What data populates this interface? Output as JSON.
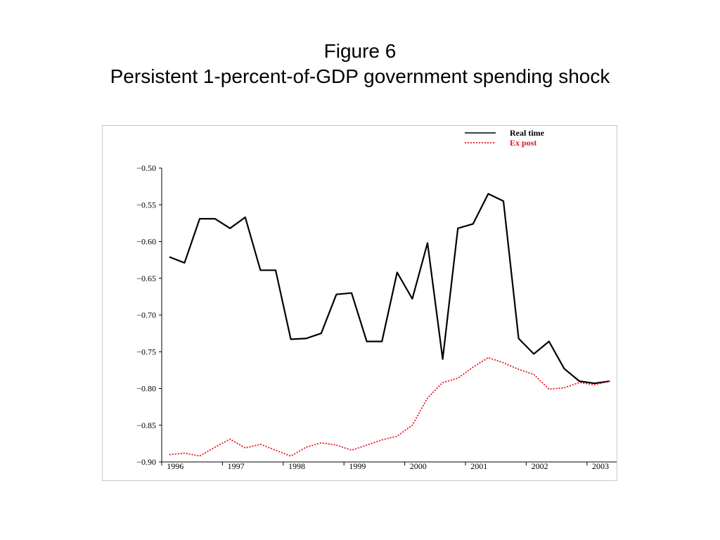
{
  "slide": {
    "title_line1": "Figure 6",
    "title_line2": "Persistent 1-percent-of-GDP government spending shock"
  },
  "chart_data": {
    "type": "line",
    "title": "",
    "xlabel": "",
    "ylabel": "",
    "x_tick_labels": [
      "1996",
      "1997",
      "1998",
      "1999",
      "2000",
      "2001",
      "2002",
      "2003"
    ],
    "y_tick_labels": [
      "−0.50",
      "−0.55",
      "−0.60",
      "−0.65",
      "−0.70",
      "−0.75",
      "−0.80",
      "−0.85",
      "−0.90"
    ],
    "y_tick_values": [
      -0.5,
      -0.55,
      -0.6,
      -0.65,
      -0.7,
      -0.75,
      -0.8,
      -0.85,
      -0.9
    ],
    "ylim": [
      -0.9,
      -0.5
    ],
    "xlim": [
      1996.0,
      2003.5
    ],
    "grid": false,
    "legend_position": "top-right",
    "x": [
      1996.125,
      1996.375,
      1996.625,
      1996.875,
      1997.125,
      1997.375,
      1997.625,
      1997.875,
      1998.125,
      1998.375,
      1998.625,
      1998.875,
      1999.125,
      1999.375,
      1999.625,
      1999.875,
      2000.125,
      2000.375,
      2000.625,
      2000.875,
      2001.125,
      2001.375,
      2001.625,
      2001.875,
      2002.125,
      2002.375,
      2002.625,
      2002.875,
      2003.125,
      2003.375
    ],
    "series": [
      {
        "name": "Real time",
        "color": "#000000",
        "style": "solid",
        "values": [
          -0.621,
          -0.629,
          -0.569,
          -0.569,
          -0.582,
          -0.567,
          -0.639,
          -0.639,
          -0.733,
          -0.732,
          -0.725,
          -0.672,
          -0.67,
          -0.736,
          -0.736,
          -0.642,
          -0.678,
          -0.602,
          -0.76,
          -0.582,
          -0.576,
          -0.535,
          -0.545,
          -0.732,
          -0.753,
          -0.736,
          -0.773,
          -0.79,
          -0.793,
          -0.79
        ]
      },
      {
        "name": "Ex post",
        "color": "#e8141c",
        "style": "dotted",
        "values": [
          -0.89,
          -0.888,
          -0.892,
          -0.88,
          -0.869,
          -0.881,
          -0.876,
          -0.884,
          -0.892,
          -0.88,
          -0.874,
          -0.877,
          -0.884,
          -0.877,
          -0.87,
          -0.865,
          -0.85,
          -0.813,
          -0.792,
          -0.786,
          -0.771,
          -0.758,
          -0.765,
          -0.774,
          -0.781,
          -0.801,
          -0.799,
          -0.792,
          -0.795,
          -0.79
        ]
      }
    ]
  }
}
